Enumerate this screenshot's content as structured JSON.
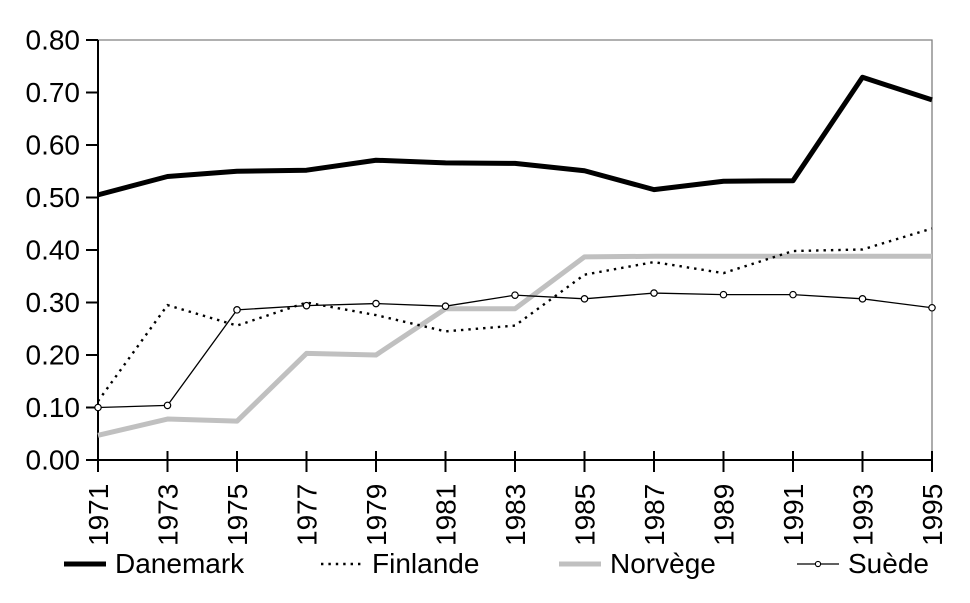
{
  "chart_data": {
    "type": "line",
    "title": "",
    "xlabel": "",
    "ylabel": "",
    "x_tick_labels": [
      "1971",
      "1973",
      "1975",
      "1977",
      "1979",
      "1981",
      "1983",
      "1985",
      "1987",
      "1989",
      "1991",
      "1993",
      "1995"
    ],
    "y_tick_labels": [
      "0.00",
      "0.10",
      "0.20",
      "0.30",
      "0.40",
      "0.50",
      "0.60",
      "0.70",
      "0.80"
    ],
    "ylim": [
      0,
      0.8
    ],
    "grid": false,
    "legend_position": "bottom",
    "axis_color": "#000000",
    "frame_color": "#808080",
    "series": [
      {
        "name": "Danemark",
        "color": "#000000",
        "style": "solid-thick",
        "values": [
          0.505,
          0.54,
          0.55,
          0.552,
          0.571,
          0.566,
          0.565,
          0.551,
          0.515,
          0.531,
          0.532,
          0.729,
          0.686
        ]
      },
      {
        "name": "Finlande",
        "color": "#000000",
        "style": "dotted",
        "values": [
          0.112,
          0.295,
          0.256,
          0.3,
          0.276,
          0.245,
          0.256,
          0.353,
          0.377,
          0.356,
          0.398,
          0.401,
          0.441
        ]
      },
      {
        "name": "Norvège",
        "color": "#c0c0c0",
        "style": "solid-thick",
        "values": [
          0.047,
          0.078,
          0.074,
          0.203,
          0.2,
          0.288,
          0.288,
          0.387,
          0.388,
          0.388,
          0.388,
          0.388,
          0.388
        ]
      },
      {
        "name": "Suède",
        "color": "#000000",
        "style": "thin-circle-markers",
        "values": [
          0.1,
          0.104,
          0.286,
          0.294,
          0.298,
          0.293,
          0.314,
          0.307,
          0.318,
          0.315,
          0.315,
          0.307,
          0.29
        ]
      }
    ]
  }
}
